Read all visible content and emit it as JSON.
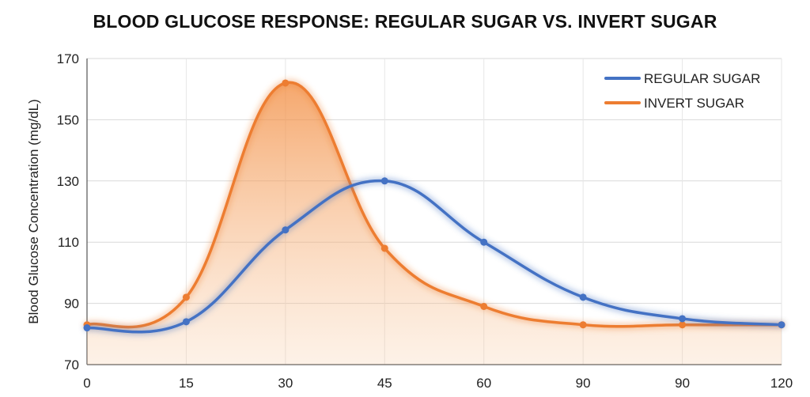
{
  "chart_data": {
    "type": "line",
    "title": "BLOOD GLUCOSE RESPONSE: REGULAR SUGAR VS. INVERT SUGAR",
    "xlabel": "",
    "ylabel": "Blood Glucose Concentration (mg/dL)",
    "ylim": [
      70,
      170
    ],
    "yticks": [
      "70",
      "90",
      "110",
      "130",
      "150",
      "170"
    ],
    "categories": [
      "0",
      "15",
      "30",
      "45",
      "60",
      "90",
      "90",
      "120"
    ],
    "grid": true,
    "legend_position": "top-right",
    "series": [
      {
        "name": "REGULAR SUGAR",
        "color": "#4472C4",
        "values": [
          82,
          84,
          114,
          130,
          110,
          92,
          85,
          83
        ]
      },
      {
        "name": "INVERT SUGAR",
        "color": "#ED7D31",
        "fill": true,
        "values": [
          83,
          92,
          162,
          108,
          89,
          83,
          83,
          83
        ]
      }
    ]
  }
}
